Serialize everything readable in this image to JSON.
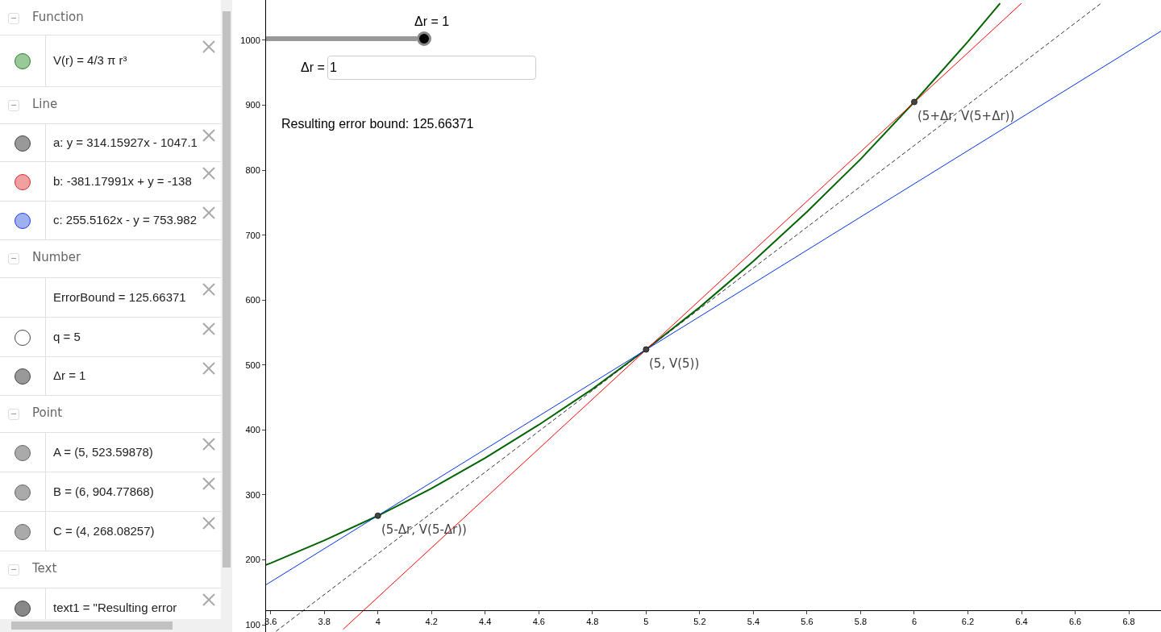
{
  "chart_data": {
    "type": "line",
    "xlim": [
      3.58,
      6.92
    ],
    "ylim": [
      89,
      1062
    ],
    "xticks": [
      3.6,
      3.8,
      4,
      4.2,
      4.4,
      4.6,
      4.8,
      5,
      5.2,
      5.4,
      5.6,
      5.8,
      6,
      6.2,
      6.4,
      6.6,
      6.8
    ],
    "yticks": [
      100,
      200,
      300,
      400,
      500,
      600,
      700,
      800,
      900,
      1000
    ],
    "grid": false,
    "line_style": "solid",
    "series": [
      {
        "color": "#006400",
        "x": [
          3.58,
          3.6,
          3.8,
          4,
          4.2,
          4.4,
          4.6,
          4.8,
          5,
          5.2,
          5.4,
          5.6,
          5.8,
          6,
          6.2,
          6.32
        ],
        "values": [
          192,
          195,
          230,
          268,
          310,
          357,
          408,
          463,
          524,
          589,
          660,
          736,
          817,
          905,
          998,
          1057
        ]
      },
      {
        "color": "#333333",
        "line_style": "dashed",
        "x": [
          3.62,
          6.7
        ],
        "values": [
          90,
          1058
        ]
      },
      {
        "color": "#ff0000",
        "x": [
          3.87,
          6.4
        ],
        "values": [
          93,
          1057
        ]
      },
      {
        "color": "#0033ee",
        "x": [
          3.58,
          6.92
        ],
        "values": [
          161,
          1014
        ]
      },
      {
        "type": "scatter",
        "marker": "circle",
        "color": "#444444",
        "x": [
          5,
          6,
          4
        ],
        "values": [
          524,
          905,
          268
        ]
      }
    ],
    "annotations": [
      "Function",
      "V(r) = 4/3 π r³",
      "Line",
      "a: y = 314.15927x - 1047.1",
      "b: -381.17991x + y = -138",
      "c: 255.5162x - y = 753.982",
      "Number",
      "ErrorBound = 125.66371",
      "q = 5",
      "Δr = 1",
      "Point",
      "A = (5, 523.59878)",
      "B = (6, 904.77868)",
      "C = (4, 268.08257)",
      "Text",
      "text1 = \"Resulting error",
      "Δr = 1",
      "Δr =",
      "1",
      "Resulting error bound: 125.66371",
      {
        "text": "(5, V(5))",
        "x": 5,
        "y": 524
      },
      {
        "text": "(5+Δr, V(5+Δr))",
        "x": 6,
        "y": 905
      },
      {
        "text": "(5-Δr, V(5-Δr))",
        "x": 4,
        "y": 268
      }
    ]
  }
}
